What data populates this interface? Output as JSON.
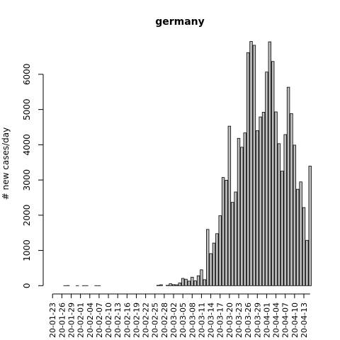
{
  "chart_data": {
    "type": "bar",
    "title": "germany",
    "xlabel": "",
    "ylabel": "# new cases/day",
    "ylim": [
      0,
      7000
    ],
    "yticks": [
      0,
      1000,
      2000,
      3000,
      4000,
      5000,
      6000
    ],
    "grid": false,
    "bar_fill": "#bebebe",
    "bar_stroke": "#000000",
    "x_tick_labels": [
      "20-01-23",
      "20-01-26",
      "20-01-29",
      "20-02-01",
      "20-02-04",
      "20-02-07",
      "20-02-10",
      "20-02-13",
      "20-02-16",
      "20-02-19",
      "20-02-22",
      "20-02-25",
      "20-02-28",
      "20-03-02",
      "20-03-05",
      "20-03-08",
      "20-03-11",
      "20-03-14",
      "20-03-17",
      "20-03-20",
      "20-03-23",
      "20-03-26",
      "20-03-29",
      "20-04-01",
      "20-04-04",
      "20-04-07",
      "20-04-10",
      "20-04-13"
    ],
    "tick_every": 3,
    "categories": [
      "20-01-23",
      "20-01-24",
      "20-01-25",
      "20-01-26",
      "20-01-27",
      "20-01-28",
      "20-01-29",
      "20-01-30",
      "20-01-31",
      "20-02-01",
      "20-02-02",
      "20-02-03",
      "20-02-04",
      "20-02-05",
      "20-02-06",
      "20-02-07",
      "20-02-08",
      "20-02-09",
      "20-02-10",
      "20-02-11",
      "20-02-12",
      "20-02-13",
      "20-02-14",
      "20-02-15",
      "20-02-16",
      "20-02-17",
      "20-02-18",
      "20-02-19",
      "20-02-20",
      "20-02-21",
      "20-02-22",
      "20-02-23",
      "20-02-24",
      "20-02-25",
      "20-02-26",
      "20-02-27",
      "20-02-28",
      "20-02-29",
      "20-03-01",
      "20-03-02",
      "20-03-03",
      "20-03-04",
      "20-03-05",
      "20-03-06",
      "20-03-07",
      "20-03-08",
      "20-03-09",
      "20-03-10",
      "20-03-11",
      "20-03-12",
      "20-03-13",
      "20-03-14",
      "20-03-15",
      "20-03-16",
      "20-03-17",
      "20-03-18",
      "20-03-19",
      "20-03-20",
      "20-03-21",
      "20-03-22",
      "20-03-23",
      "20-03-24",
      "20-03-25",
      "20-03-26",
      "20-03-27",
      "20-03-28",
      "20-03-29",
      "20-03-30",
      "20-03-31",
      "20-04-01",
      "20-04-02",
      "20-04-03",
      "20-04-04",
      "20-04-05",
      "20-04-06",
      "20-04-07",
      "20-04-08",
      "20-04-09",
      "20-04-10",
      "20-04-11",
      "20-04-12",
      "20-04-13",
      "20-04-14",
      "20-04-15"
    ],
    "values": [
      0,
      0,
      0,
      0,
      1,
      3,
      0,
      0,
      1,
      0,
      1,
      1,
      0,
      0,
      1,
      1,
      0,
      0,
      0,
      0,
      0,
      0,
      0,
      0,
      0,
      0,
      0,
      0,
      0,
      0,
      0,
      0,
      0,
      0,
      10,
      27,
      0,
      9,
      54,
      30,
      26,
      77,
      207,
      183,
      130,
      241,
      136,
      281,
      451,
      170,
      1597,
      910,
      1210,
      1477,
      1985,
      3070,
      2993,
      4528,
      2365,
      2660,
      4183,
      3930,
      4337,
      6615,
      6933,
      6824,
      4400,
      4790,
      4923,
      6064,
      6922,
      6365,
      4933,
      4031,
      3251,
      4289,
      5633,
      4885,
      3990,
      2737,
      2946,
      2218,
      1287,
      3394
    ]
  }
}
